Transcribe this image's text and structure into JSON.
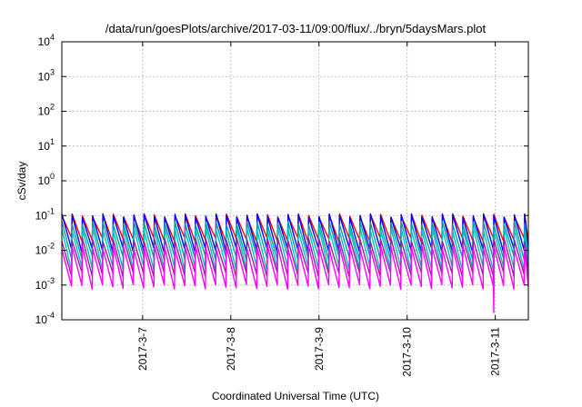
{
  "chart_data": {
    "type": "line",
    "title": "/data/run/goesPlots/archive/2017-03-11/09:00/flux/../bryn/5daysMars.plot",
    "xlabel": "Coordinated Universal Time (UTC)",
    "ylabel": "cSv/day",
    "yscale": "log",
    "ylim": [
      0.0001,
      10000
    ],
    "xlim": [
      "2017-03-06 02:00",
      "2017-03-11 09:00"
    ],
    "y_ticks": [
      {
        "base": "10",
        "exp": "-4"
      },
      {
        "base": "10",
        "exp": "-3"
      },
      {
        "base": "10",
        "exp": "-2"
      },
      {
        "base": "10",
        "exp": "-1"
      },
      {
        "base": "10",
        "exp": "0"
      },
      {
        "base": "10",
        "exp": "1"
      },
      {
        "base": "10",
        "exp": "2"
      },
      {
        "base": "10",
        "exp": "3"
      },
      {
        "base": "10",
        "exp": "4"
      }
    ],
    "x_ticks": [
      {
        "date": "2017-03-07",
        "label": "2017-3-7"
      },
      {
        "date": "2017-03-08",
        "label": "2017-3-8"
      },
      {
        "date": "2017-03-09",
        "label": "2017-3-9"
      },
      {
        "date": "2017-03-10",
        "label": "2017-3-10"
      },
      {
        "date": "2017-03-11",
        "label": "2017-3-11"
      }
    ],
    "grid": true,
    "legend": "none",
    "sawtooth_period_hours": 2.8,
    "dip": {
      "time": "2017-03-11 00:00",
      "min_value": 0.00015
    },
    "series": [
      {
        "color": "#ff0000",
        "peak": 0.1,
        "trough": 0.02
      },
      {
        "color": "#0000ff",
        "peak": 0.1,
        "trough": 0.01
      },
      {
        "color": "#00a0a0",
        "peak": 0.06,
        "trough": 0.006
      },
      {
        "color": "#00bfbf",
        "peak": 0.04,
        "trough": 0.003
      },
      {
        "color": "#9e1b9e",
        "peak": 0.02,
        "trough": 0.002
      },
      {
        "color": "#ff00ff",
        "peak": 0.012,
        "trough": 0.0009
      }
    ]
  }
}
